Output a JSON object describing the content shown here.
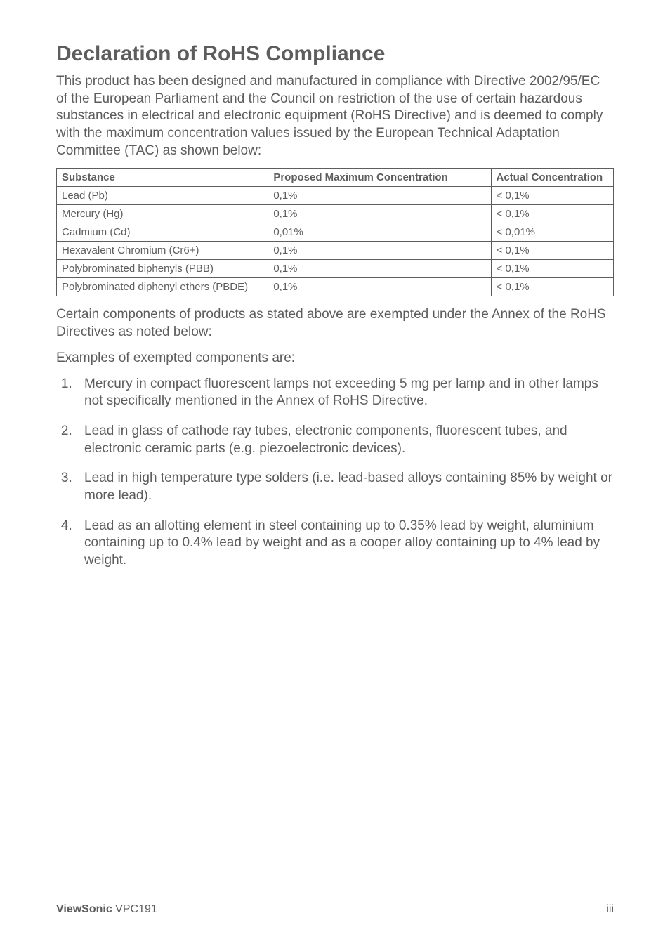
{
  "title": "Declaration of RoHS Compliance",
  "intro": "This product has been designed and manufactured in compliance with Directive 2002/95/EC of the European Parliament and the Council on restriction of the use of certain hazardous substances in electrical and electronic equipment (RoHS Directive) and is deemed to comply with the maximum concentration values issued by the European Technical Adaptation Committee (TAC) as shown below:",
  "table": {
    "columns": [
      "Substance",
      "Proposed Maximum Concentration",
      "Actual Concentration"
    ],
    "col_widths": [
      "38%",
      "40%",
      "22%"
    ],
    "rows": [
      [
        "Lead (Pb)",
        "0,1%",
        "< 0,1%"
      ],
      [
        "Mercury (Hg)",
        "0,1%",
        "< 0,1%"
      ],
      [
        "Cadmium (Cd)",
        "0,01%",
        "< 0,01%"
      ],
      [
        "Hexavalent Chromium (Cr6+)",
        "0,1%",
        "< 0,1%"
      ],
      [
        "Polybrominated biphenyls (PBB)",
        "0,1%",
        "< 0,1%"
      ],
      [
        "Polybrominated diphenyl ethers (PBDE)",
        "0,1%",
        "< 0,1%"
      ]
    ],
    "border_color": "#5d5d5d",
    "header_fontweight": "bold",
    "cell_fontsize": 15
  },
  "para_exempt": "Certain components of products as stated above are exempted under the Annex of the RoHS Directives as noted below:",
  "para_examples": "Examples of exempted components are:",
  "list_items": [
    "Mercury in compact fluorescent lamps not exceeding 5 mg per lamp and in other lamps not specifically mentioned in the Annex of RoHS Directive.",
    "Lead in glass of cathode ray tubes, electronic components, fluorescent tubes, and electronic ceramic parts (e.g. piezoelectronic devices).",
    "Lead in high temperature type solders (i.e. lead-based alloys containing 85% by weight or more lead).",
    "Lead as an allotting element in steel containing up to 0.35% lead by weight, aluminium containing up to 0.4% lead by weight and as a cooper alloy containing up to 4% lead by weight."
  ],
  "footer": {
    "brand": "ViewSonic",
    "model": " VPC191",
    "page_num": "iii"
  },
  "colors": {
    "text": "#5d5d5d",
    "background": "#ffffff"
  }
}
